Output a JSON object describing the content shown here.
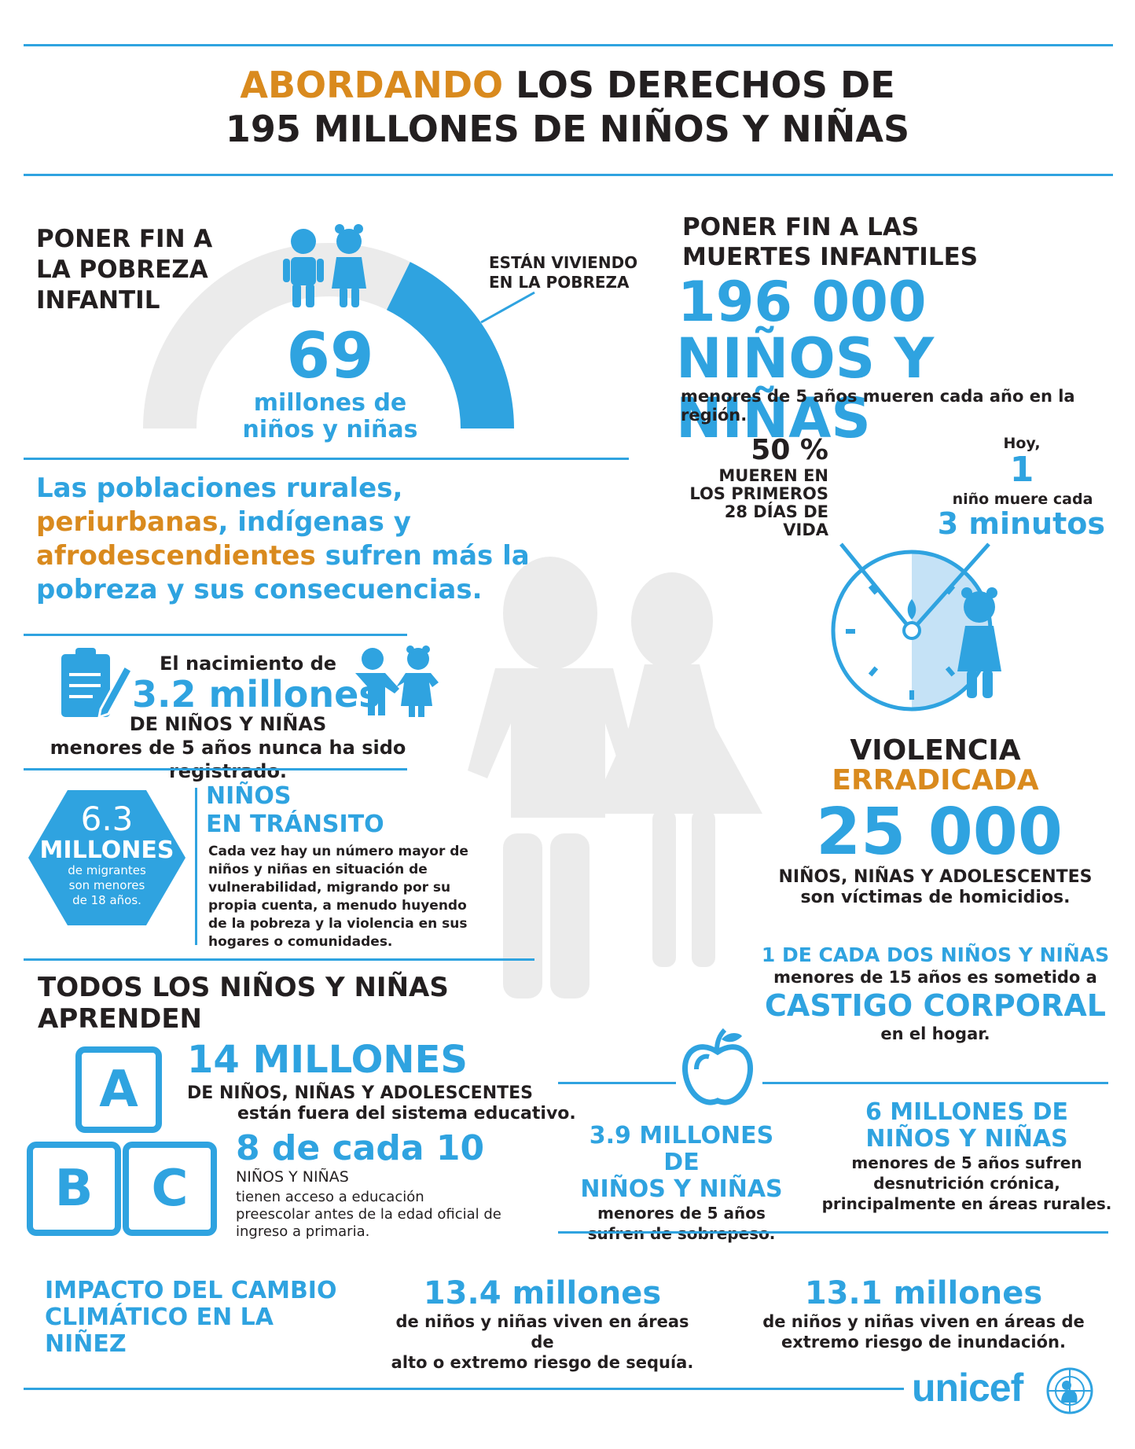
{
  "title": {
    "highlight": "ABORDANDO",
    "line1_rest": " LOS DERECHOS DE",
    "line2": "195 MILLONES DE NIÑOS Y NIÑAS"
  },
  "poverty": {
    "heading_l1": "PONER FIN A",
    "heading_l2": "LA POBREZA",
    "heading_l3": "INFANTIL",
    "callout_l1": "ESTÁN VIVIENDO",
    "callout_l2": "EN LA POBREZA",
    "number": "69",
    "sub_l1": "millones de",
    "sub_l2": "niños y niñas",
    "share_in_poverty": 0.355
  },
  "rural": {
    "l1": "Las poblaciones rurales,",
    "l2a": "periurbanas",
    "l2b": ", indígenas y",
    "l3a": "afrodescendientes",
    "l3b": " sufren más la",
    "l4": "pobreza y sus consecuencias."
  },
  "registration": {
    "lead": "El nacimiento de",
    "number": "3.2 millones",
    "l3": "DE NIÑOS Y NIÑAS",
    "l4": "menores de 5 años nunca ha sido registrado."
  },
  "migration": {
    "hex_number": "6.3",
    "hex_word": "MILLONES",
    "hex_l1": "de migrantes",
    "hex_l2": "son menores",
    "hex_l3": "de 18 años.",
    "heading_l1": "NIÑOS",
    "heading_l2": "EN TRÁNSITO",
    "body": [
      "Cada vez hay un número mayor de",
      "niños y niñas en situación de",
      "vulnerabilidad, migrando por su",
      "propia cuenta, a menudo huyendo",
      "de la pobreza y la violencia en sus",
      "hogares o comunidades."
    ]
  },
  "education": {
    "heading_l1": "TODOS LOS NIÑOS Y NIÑAS",
    "heading_l2": "APRENDEN",
    "blocks": [
      "A",
      "B",
      "C"
    ],
    "n1": "14 MILLONES",
    "n1_l1": "DE NIÑOS, NIÑAS Y ADOLESCENTES",
    "n1_l2": "están fuera del sistema educativo.",
    "n2": "8 de cada 10",
    "n2_l1": "NIÑOS Y NIÑAS",
    "n2_body": [
      "tienen acceso a educación",
      "preescolar antes de la edad oficial de",
      "ingreso a primaria."
    ]
  },
  "deaths": {
    "heading_l1": "PONER FIN A LAS",
    "heading_l2": "MUERTES INFANTILES",
    "number": "196 000",
    "big_l2": "NIÑOS Y NIÑAS",
    "sub": "menores de 5 años mueren cada año en la región.",
    "pct": "50 %",
    "pct_l1": "MUEREN EN",
    "pct_l2": "LOS PRIMEROS",
    "pct_l3": "28 DÍAS DE",
    "pct_l4": "VIDA",
    "today": "Hoy,",
    "one": "1",
    "one_l": "niño muere cada",
    "minutes": "3 minutos"
  },
  "violence": {
    "l1": "VIOLENCIA",
    "l2": "ERRADICADA",
    "number": "25 000",
    "sub_l1": "NIÑOS, NIÑAS Y ADOLESCENTES",
    "sub_l2": "son víctimas de homicidios.",
    "cp_l1": "1 DE CADA DOS NIÑOS Y NIÑAS",
    "cp_l2": "menores de 15 años es sometido a",
    "cp_l3": "CASTIGO CORPORAL",
    "cp_l4": "en el hogar."
  },
  "nutrition": {
    "left_l1": "3.9 MILLONES DE",
    "left_l2": "NIÑOS Y NIÑAS",
    "left_l3": "menores de 5 años",
    "left_l4": "sufren de sobrepeso.",
    "right_l1": "6 MILLONES DE",
    "right_l2": "NIÑOS Y NIÑAS",
    "right_l3": "menores de 5 años sufren",
    "right_l4": "desnutrición crónica,",
    "right_l5": "principalmente en áreas rurales."
  },
  "climate": {
    "heading_l1": "IMPACTO DEL CAMBIO",
    "heading_l2": "CLIMÁTICO EN LA",
    "heading_l3": "NIÑEZ",
    "d_number": "13.4 millones",
    "d_l1": "de niños y niñas viven en áreas de",
    "d_l2": "alto o extremo riesgo de sequía.",
    "f_number": "13.1 millones",
    "f_l1": "de niños y niñas viven en áreas de",
    "f_l2": "extremo riesgo de inundación."
  },
  "logo": {
    "text": "unicef"
  },
  "colors": {
    "blue": "#2fa3e0",
    "orange": "#d98a1e",
    "dark": "#231f20",
    "gray": "#ebebeb",
    "light_blue": "#c5e2f6"
  }
}
